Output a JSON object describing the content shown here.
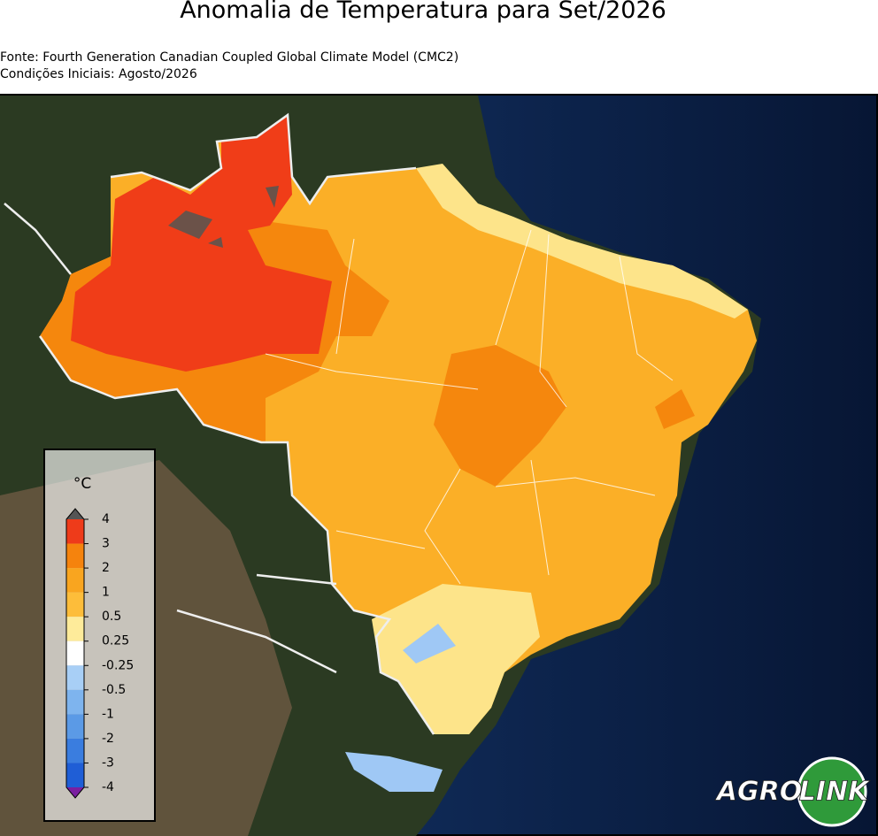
{
  "header": {
    "title": "Anomalia de Temperatura para Set/2026",
    "source": "Fonte: Fourth Generation Canadian Coupled Global Climate Model (CMC2)",
    "initial_conditions": "Condições Iniciais: Agosto/2026"
  },
  "legend": {
    "unit": "°C",
    "ticks": [
      "4",
      "3",
      "2",
      "1",
      "0.5",
      "0.25",
      "-0.25",
      "-0.5",
      "-1",
      "-2",
      "-3",
      "-4"
    ],
    "colors": [
      "#ee3b1a",
      "#f5830d",
      "#f9a51f",
      "#fdbd3a",
      "#feeb9a",
      "#ffffff",
      "#a8cff6",
      "#7eb4ee",
      "#5b9ae6",
      "#3a7ddf",
      "#1f5ed6"
    ],
    "over_color": "#555555",
    "under_color": "#7a1fa0"
  },
  "logo": {
    "left": "AGRO",
    "right": "LINK"
  }
}
